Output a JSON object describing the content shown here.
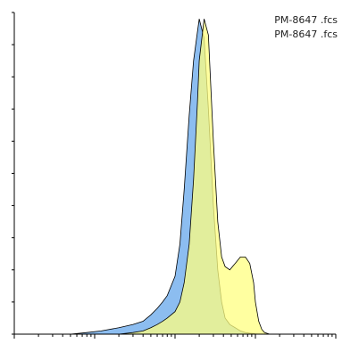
{
  "chart_data": {
    "type": "area",
    "title": "",
    "xlabel": "",
    "ylabel": "",
    "x_scale": "log",
    "xlim": [
      1,
      10000
    ],
    "ylim": [
      0,
      100
    ],
    "grid": false,
    "legend_placement": "top-right",
    "legend": [
      "PM-8647 .fcs",
      "PM-8647 .fcs"
    ],
    "x": [
      1,
      2,
      3,
      5,
      8,
      12,
      20,
      30,
      40,
      50,
      60,
      70,
      80,
      100,
      115,
      130,
      150,
      170,
      190,
      200,
      230,
      260,
      300,
      340,
      380,
      420,
      480,
      560,
      650,
      750,
      850,
      950,
      1000,
      1100,
      1200,
      1300,
      1500,
      2000,
      3000,
      5000,
      10000
    ],
    "series": [
      {
        "color": "#8cbdf0",
        "stroke": "#000000",
        "values": [
          0,
          0,
          0,
          0,
          0.5,
          1,
          2,
          3,
          4,
          6,
          8,
          10,
          12,
          18,
          28,
          45,
          68,
          85,
          94,
          98,
          92,
          70,
          40,
          20,
          10,
          5,
          3,
          2,
          1,
          0.5,
          0.3,
          0.2,
          0.1,
          0,
          0,
          0,
          0,
          0,
          0,
          0,
          0
        ]
      },
      {
        "color": "#ffff80",
        "stroke": "#000000",
        "values": [
          0,
          0,
          0,
          0,
          0,
          0,
          0,
          0.5,
          1,
          2,
          3,
          4,
          5,
          7,
          10,
          16,
          28,
          48,
          72,
          85,
          98,
          93,
          60,
          35,
          24,
          21,
          20,
          22,
          24,
          24,
          22,
          16,
          10,
          4,
          1.5,
          0.5,
          0,
          0,
          0,
          0,
          0
        ]
      }
    ]
  }
}
